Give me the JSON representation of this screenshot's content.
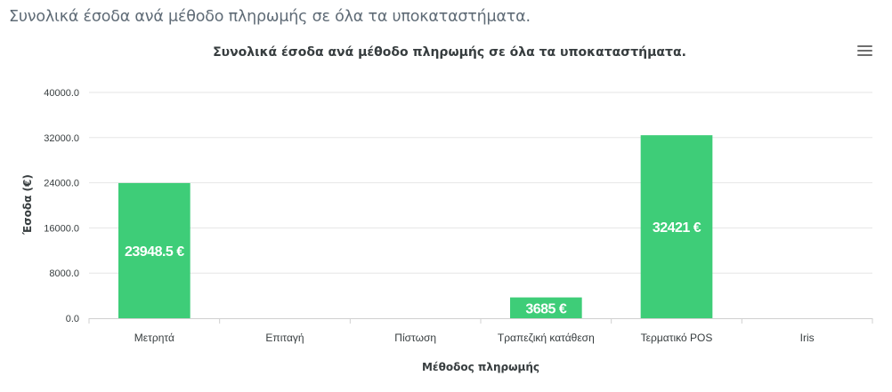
{
  "page": {
    "heading": "Συνολικά έσοδα ανά μέθοδο πληρωμής σε όλα τα υποκαταστήματα."
  },
  "toolbar": {
    "menu_icon": "hamburger-menu-icon"
  },
  "chart_data": {
    "type": "bar",
    "title": "Συνολικά έσοδα ανά μέθοδο πληρωμής σε όλα τα υποκαταστήματα.",
    "xlabel": "Μέθοδος πληρωμής",
    "ylabel": "Έσοδα (€)",
    "categories": [
      "Μετρητά",
      "Επιταγή",
      "Πίστωση",
      "Τραπεζική κατάθεση",
      "Τερματικό POS",
      "Iris"
    ],
    "values": [
      23948.5,
      0,
      0,
      3685,
      32421,
      0
    ],
    "data_labels": [
      "23948.5 €",
      "",
      "",
      "3685 €",
      "32421 €",
      ""
    ],
    "ylim": [
      0,
      40000
    ],
    "yticks": [
      "0.0",
      "8000.0",
      "16000.0",
      "24000.0",
      "32000.0",
      "40000.0"
    ],
    "ytick_values": [
      0,
      8000,
      16000,
      24000,
      32000,
      40000
    ],
    "grid": true,
    "bar_color": "#3ecd78",
    "grid_color": "#e6e6e6",
    "axis_color": "#d0d0d0"
  }
}
